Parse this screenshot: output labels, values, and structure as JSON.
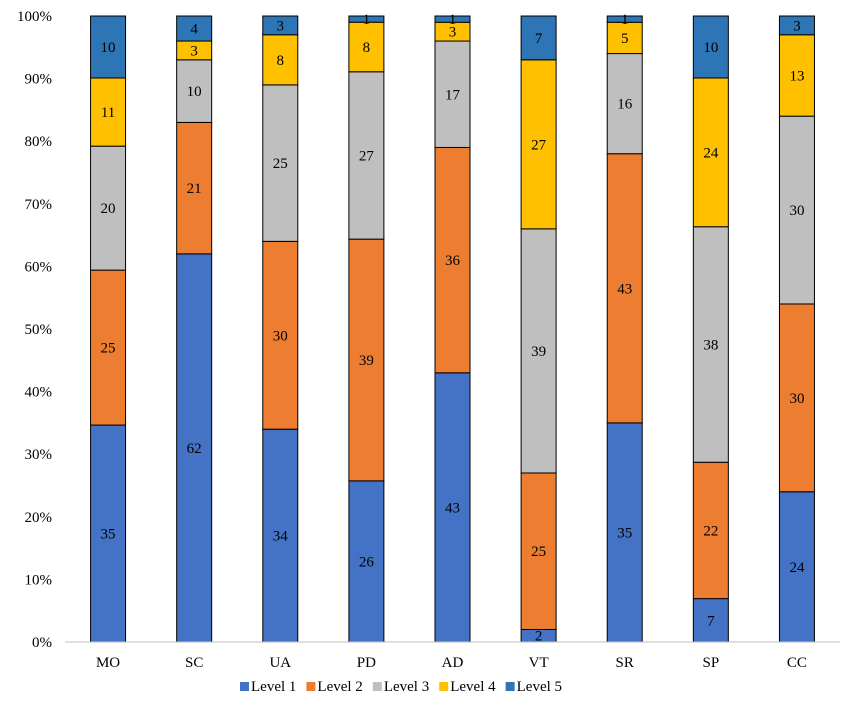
{
  "chart_data": {
    "type": "bar",
    "stacked": true,
    "normalized": true,
    "categories": [
      "MO",
      "SC",
      "UA",
      "PD",
      "AD",
      "VT",
      "SR",
      "SP",
      "CC"
    ],
    "series": [
      {
        "name": "Level 1",
        "color": "#4472C4",
        "values": [
          35,
          62,
          34,
          26,
          43,
          2,
          35,
          7,
          24
        ]
      },
      {
        "name": "Level 2",
        "color": "#ED7D31",
        "values": [
          25,
          21,
          30,
          39,
          36,
          25,
          43,
          22,
          30
        ]
      },
      {
        "name": "Level 3",
        "color": "#BFBFBF",
        "values": [
          20,
          10,
          25,
          27,
          17,
          39,
          16,
          38,
          30
        ]
      },
      {
        "name": "Level 4",
        "color": "#FFC000",
        "values": [
          11,
          3,
          8,
          8,
          3,
          27,
          5,
          24,
          13
        ]
      },
      {
        "name": "Level 5",
        "color": "#2E75B6",
        "values": [
          10,
          4,
          3,
          1,
          1,
          7,
          1,
          10,
          3
        ]
      }
    ],
    "ylim": [
      0,
      100
    ],
    "yticks": [
      "0%",
      "10%",
      "20%",
      "30%",
      "40%",
      "50%",
      "60%",
      "70%",
      "80%",
      "90%",
      "100%"
    ],
    "title": "",
    "xlabel": "",
    "ylabel": "",
    "grid": false,
    "legend": "bottom"
  }
}
